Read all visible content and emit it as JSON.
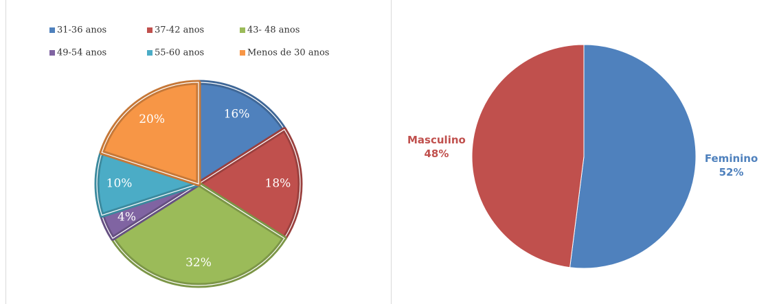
{
  "chart_data": [
    {
      "type": "pie",
      "categories": [
        "31-36 anos",
        "37-42 anos",
        "43- 48 anos",
        "49-54 anos",
        "55-60 anos",
        "Menos de 30 anos"
      ],
      "values": [
        16,
        18,
        32,
        4,
        10,
        20
      ],
      "value_labels": [
        "16%",
        "18%",
        "32%",
        "4%",
        "10%",
        "20%"
      ],
      "colors": [
        "#4f81bd",
        "#c0504d",
        "#9bbb59",
        "#8064a2",
        "#4bacc6",
        "#f79646"
      ],
      "legend": "top",
      "labels": "inside"
    },
    {
      "type": "pie",
      "categories": [
        "Feminino",
        "Masculino"
      ],
      "values": [
        52,
        48
      ],
      "value_labels": [
        "52%",
        "48%"
      ],
      "colors": [
        "#4f81bd",
        "#c0504d"
      ],
      "legend": "none",
      "labels": "outside"
    }
  ]
}
